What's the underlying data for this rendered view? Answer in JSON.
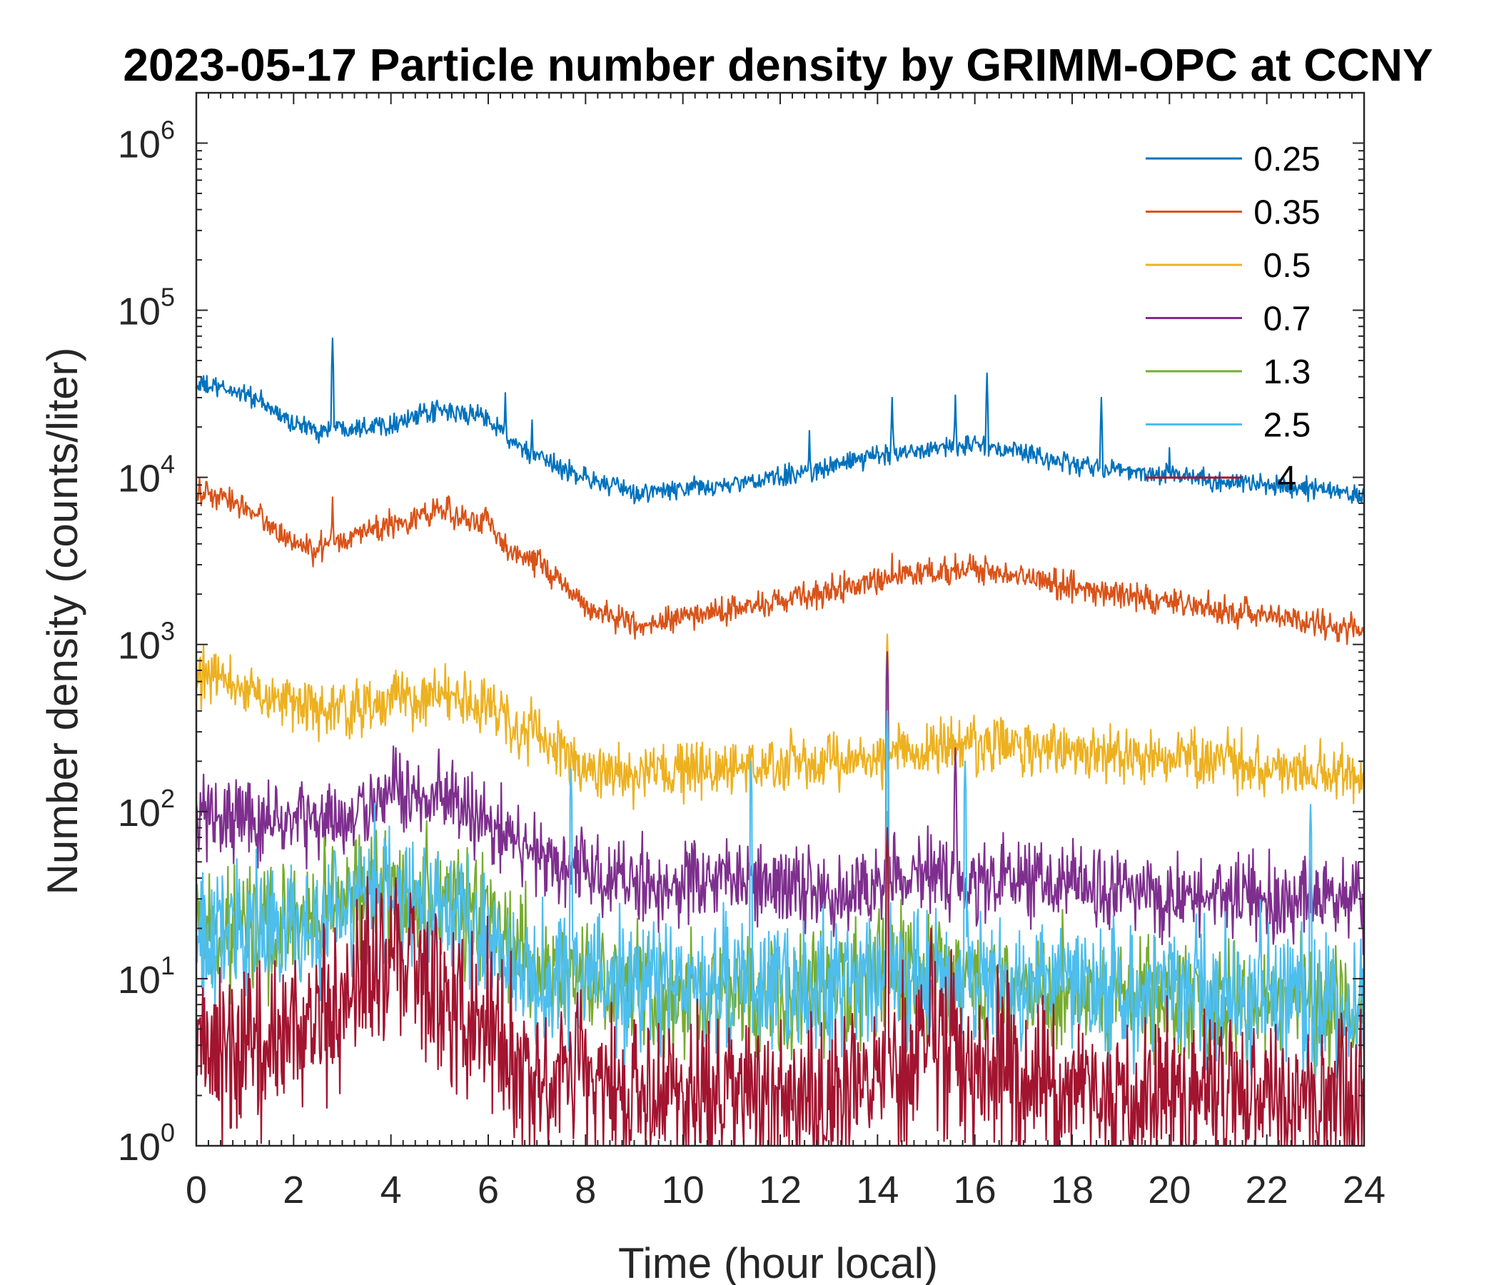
{
  "chart_data": {
    "type": "line",
    "title": "2023-05-17 Particle number density by GRIMM-OPC at CCNY",
    "xlabel": "Time (hour local)",
    "ylabel": "Number density (counts/liter)",
    "xlim": [
      0,
      24
    ],
    "ylim": [
      1,
      2000000
    ],
    "yscale": "log",
    "grid": false,
    "legend_location": "top-right",
    "xticks": [
      0,
      2,
      4,
      6,
      8,
      10,
      12,
      14,
      16,
      18,
      20,
      22,
      24
    ],
    "yticks": [
      {
        "value": 1,
        "base": "10",
        "exp": "0"
      },
      {
        "value": 10,
        "base": "10",
        "exp": "1"
      },
      {
        "value": 100,
        "base": "10",
        "exp": "2"
      },
      {
        "value": 1000,
        "base": "10",
        "exp": "3"
      },
      {
        "value": 10000,
        "base": "10",
        "exp": "4"
      },
      {
        "value": 100000,
        "base": "10",
        "exp": "5"
      },
      {
        "value": 1000000,
        "base": "10",
        "exp": "6"
      }
    ],
    "x": [
      0,
      1,
      2,
      2.5,
      3,
      4,
      5,
      6,
      6.5,
      7,
      8,
      9,
      10,
      11,
      12,
      13,
      14,
      15,
      16,
      17,
      18,
      19,
      20,
      21,
      22,
      23,
      24
    ],
    "series": [
      {
        "name": "0.25",
        "color": "#0072BD",
        "noise": 0.03,
        "values": [
          36000,
          32000,
          21000,
          19000,
          20000,
          21000,
          25000,
          23000,
          16000,
          13000,
          10000,
          8000,
          8500,
          9000,
          10000,
          11500,
          13500,
          15000,
          15500,
          14000,
          12000,
          11000,
          10500,
          9500,
          9000,
          8500,
          7800
        ],
        "spikes": [
          [
            2.8,
            68000
          ],
          [
            6.35,
            32000
          ],
          [
            6.9,
            22000
          ],
          [
            12.6,
            19000
          ],
          [
            14.3,
            30000
          ],
          [
            15.6,
            31000
          ],
          [
            16.25,
            42000
          ],
          [
            18.6,
            30000
          ],
          [
            20,
            15000
          ]
        ]
      },
      {
        "name": "0.35",
        "color": "#D95319",
        "noise": 0.04,
        "values": [
          8200,
          6800,
          4000,
          3600,
          4300,
          5200,
          6300,
          5400,
          3500,
          3200,
          1700,
          1300,
          1450,
          1600,
          1850,
          2100,
          2400,
          2700,
          2800,
          2500,
          2200,
          2000,
          1800,
          1600,
          1500,
          1350,
          1200
        ],
        "spikes": [
          [
            2.8,
            7600
          ],
          [
            4.7,
            7000
          ],
          [
            14.3,
            3500
          ],
          [
            15.6,
            3500
          ]
        ]
      },
      {
        "name": "0.5",
        "color": "#EDB120",
        "noise": 0.08,
        "values": [
          650,
          550,
          450,
          400,
          400,
          460,
          500,
          430,
          320,
          290,
          180,
          160,
          170,
          180,
          190,
          200,
          210,
          240,
          250,
          240,
          230,
          220,
          210,
          200,
          180,
          170,
          160
        ],
        "spikes": [
          [
            4.1,
            700
          ],
          [
            14.2,
            1150
          ],
          [
            21.2,
            320
          ]
        ]
      },
      {
        "name": "0.7",
        "color": "#7E2F8E",
        "noise": 0.12,
        "values": [
          95,
          90,
          90,
          85,
          90,
          120,
          120,
          90,
          65,
          60,
          45,
          35,
          38,
          38,
          35,
          35,
          35,
          42,
          40,
          38,
          35,
          35,
          32,
          32,
          30,
          30,
          30
        ],
        "spikes": [
          [
            4.1,
            240
          ],
          [
            14.2,
            900
          ],
          [
            15.6,
            240
          ]
        ]
      },
      {
        "name": "1.3",
        "color": "#77AC30",
        "noise": 0.18,
        "values": [
          18,
          20,
          22,
          25,
          30,
          35,
          32,
          22,
          14,
          12,
          10,
          8,
          8,
          8,
          8,
          8,
          10,
          10,
          9,
          8,
          8,
          8,
          8,
          7,
          7,
          7,
          7
        ],
        "spikes": [
          [
            14.2,
            100
          ]
        ]
      },
      {
        "name": "2.5",
        "color": "#4DBEEE",
        "noise": 0.2,
        "values": [
          18,
          18,
          20,
          20,
          25,
          35,
          25,
          18,
          12,
          10,
          10,
          9,
          9,
          9,
          9,
          9,
          10,
          10,
          10,
          9,
          9,
          9,
          8,
          8,
          8,
          7,
          6
        ],
        "spikes": [
          [
            7.7,
            180
          ],
          [
            11.4,
            200
          ],
          [
            14.2,
            400
          ],
          [
            15.8,
            200
          ],
          [
            22.9,
            110
          ]
        ]
      },
      {
        "name": "4",
        "color": "#A2142F",
        "noise": 0.25,
        "values": [
          4,
          4,
          5,
          6,
          8,
          15,
          9,
          5,
          3,
          3,
          2,
          2,
          2,
          2,
          2,
          2,
          2.5,
          4,
          3,
          2.5,
          2,
          2,
          2,
          2,
          2,
          2,
          2
        ],
        "spikes": [
          [
            4.1,
            40
          ],
          [
            14.2,
            80
          ],
          [
            15.1,
            20
          ]
        ]
      }
    ]
  }
}
